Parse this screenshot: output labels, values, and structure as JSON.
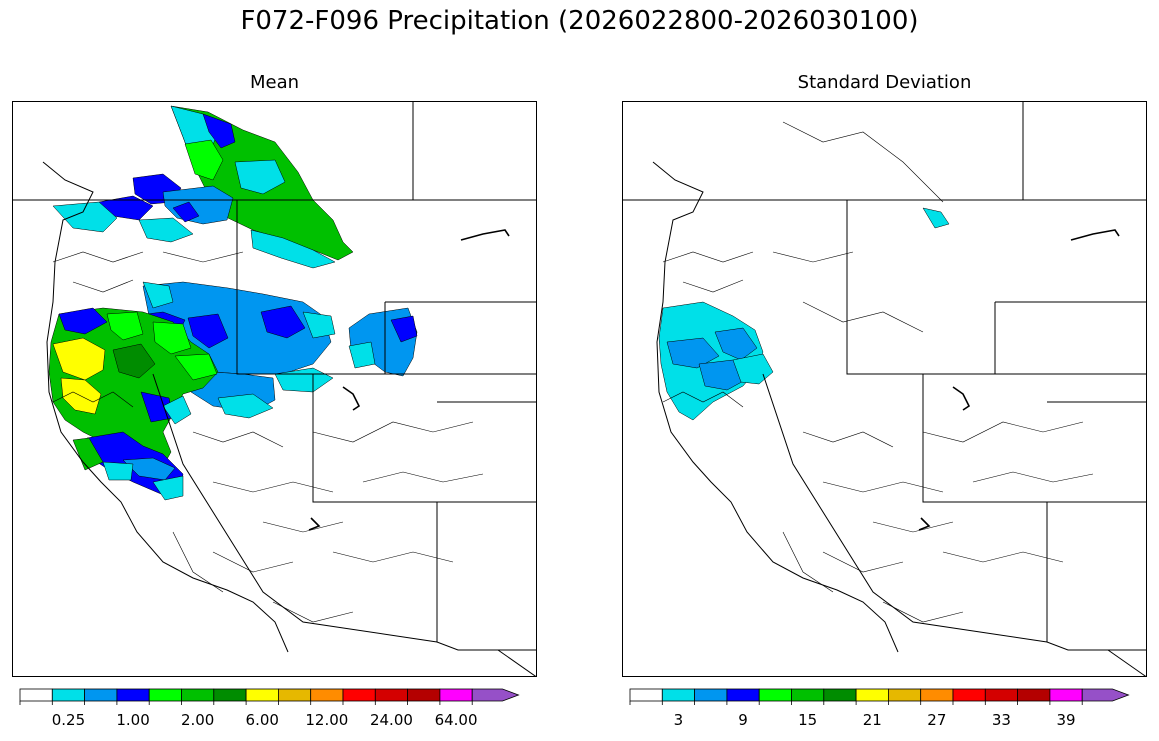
{
  "figure": {
    "title": "F072-F096 Precipitation (2026022800-2026030100)"
  },
  "panels": [
    {
      "id": "mean",
      "title": "Mean",
      "colorbar": {
        "colors": [
          "#ffffff",
          "#00e0e8",
          "#0096f0",
          "#0000ff",
          "#00ff00",
          "#00c000",
          "#008c00",
          "#ffff00",
          "#e6b800",
          "#ff8c00",
          "#ff0000",
          "#d40000",
          "#b40000",
          "#ff00ff",
          "#9650c8"
        ],
        "tick_labels": [
          "0.25",
          "1.00",
          "2.00",
          "6.00",
          "12.00",
          "24.00",
          "64.00"
        ],
        "tick_bins": [
          1,
          3,
          5,
          7,
          9,
          11,
          13
        ],
        "extend": "max"
      }
    },
    {
      "id": "std",
      "title": "Standard Deviation",
      "colorbar": {
        "colors": [
          "#ffffff",
          "#00e0e8",
          "#0096f0",
          "#0000ff",
          "#00ff00",
          "#00c000",
          "#008c00",
          "#ffff00",
          "#e6b800",
          "#ff8c00",
          "#ff0000",
          "#d40000",
          "#b40000",
          "#ff00ff",
          "#9650c8"
        ],
        "tick_labels": [
          "3",
          "9",
          "15",
          "21",
          "27",
          "33",
          "39"
        ],
        "tick_bins": [
          1,
          3,
          5,
          7,
          9,
          11,
          13
        ],
        "extend": "max"
      }
    }
  ]
}
